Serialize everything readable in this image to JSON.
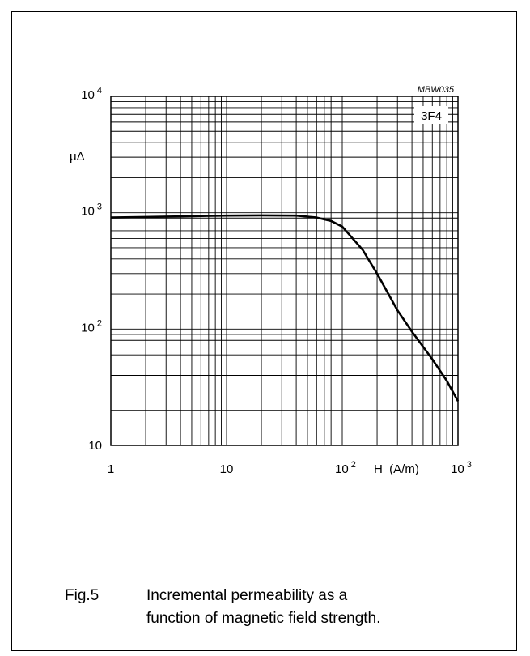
{
  "chart_data": {
    "type": "line",
    "code": "MBW035",
    "legend_label": "3F4",
    "ylabel": "μΔ",
    "xlabel": "H  (A/m)",
    "x_scale": "log",
    "y_scale": "log",
    "xlim": [
      1,
      1000
    ],
    "ylim": [
      10,
      10000
    ],
    "grid": true,
    "x_ticks": [
      {
        "value": 1,
        "base": "1",
        "exp": ""
      },
      {
        "value": 10,
        "base": "10",
        "exp": ""
      },
      {
        "value": 100,
        "base": "10",
        "exp": "2"
      },
      {
        "value": 1000,
        "base": "10",
        "exp": "3"
      }
    ],
    "y_ticks": [
      {
        "value": 10,
        "base": "10",
        "exp": ""
      },
      {
        "value": 100,
        "base": "10",
        "exp": "2"
      },
      {
        "value": 1000,
        "base": "10",
        "exp": "3"
      },
      {
        "value": 10000,
        "base": "10",
        "exp": "4"
      }
    ],
    "series": [
      {
        "x": [
          1,
          2,
          5,
          10,
          20,
          40,
          60,
          80,
          100,
          150,
          200,
          300,
          400,
          600,
          800,
          1000
        ],
        "y": [
          910,
          920,
          935,
          945,
          950,
          945,
          910,
          850,
          760,
          480,
          300,
          145,
          95,
          55,
          36,
          24
        ]
      }
    ]
  },
  "caption": {
    "label": "Fig.5",
    "line1": "Incremental permeability as a",
    "line2": "function of magnetic field strength."
  }
}
